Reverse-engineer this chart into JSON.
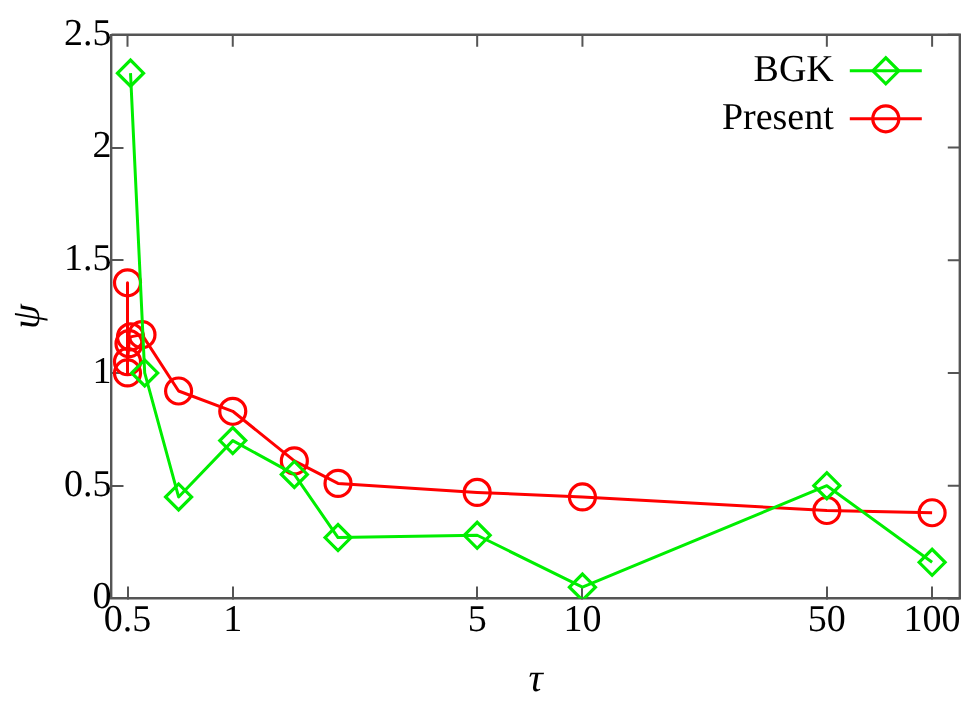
{
  "chart_data": {
    "type": "line",
    "xlabel": "τ",
    "ylabel": "ψ",
    "log": "x",
    "xlim": [
      0.45,
      120
    ],
    "xticks": [
      0.5,
      1,
      5,
      10,
      50,
      100
    ],
    "ylim": [
      0,
      2.5
    ],
    "yticks": [
      0,
      0.5,
      1,
      1.5,
      2,
      2.5
    ],
    "grid": false,
    "legend": "top right",
    "line_style": "solid",
    "series": [
      {
        "name": "BGK",
        "color": "#00ee00",
        "marker": "diamond",
        "x": [
          0.51,
          0.56,
          0.7,
          1,
          1.5,
          2,
          5,
          10,
          50,
          100
        ],
        "values": [
          2.33,
          1.0,
          0.45,
          0.7,
          0.55,
          0.27,
          0.28,
          0.05,
          0.5,
          0.16
        ]
      },
      {
        "name": "Present",
        "color": "#ff0000",
        "marker": "circle",
        "x": [
          0.5,
          0.5,
          0.5,
          0.505,
          0.51,
          0.55,
          0.7,
          1,
          1.5,
          2,
          5,
          10,
          50,
          100
        ],
        "values": [
          1.4,
          1.0,
          1.05,
          1.13,
          1.16,
          1.17,
          0.92,
          0.83,
          0.61,
          0.51,
          0.47,
          0.45,
          0.39,
          0.38
        ]
      }
    ]
  }
}
